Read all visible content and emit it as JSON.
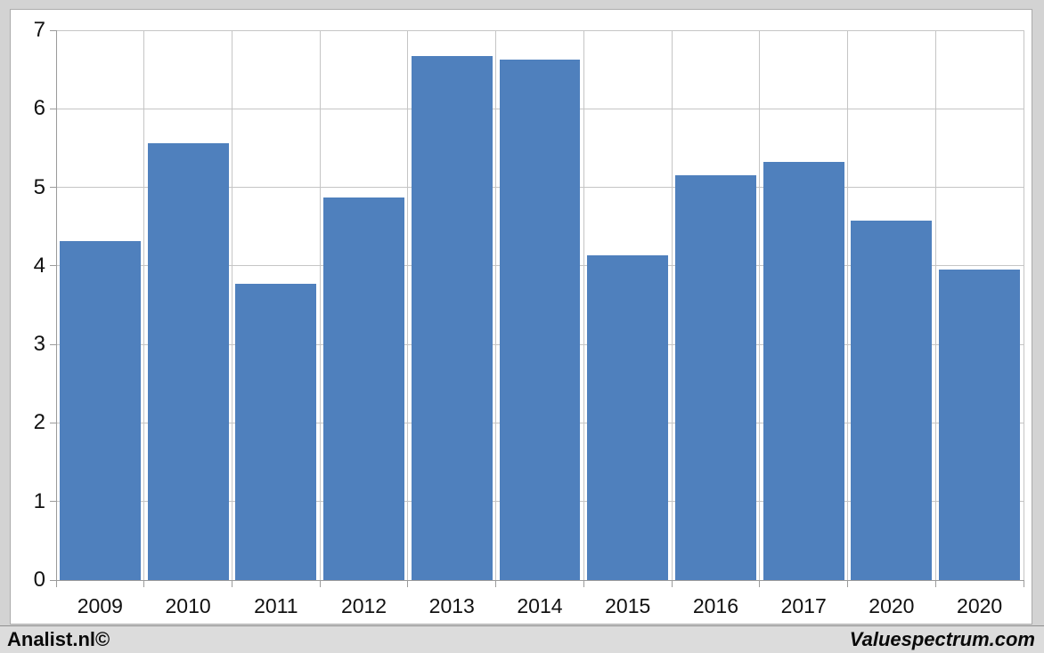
{
  "chart_data": {
    "type": "bar",
    "categories": [
      "2009",
      "2010",
      "2011",
      "2012",
      "2013",
      "2014",
      "2015",
      "2016",
      "2017",
      "2020",
      "2020"
    ],
    "values": [
      4.32,
      5.56,
      3.77,
      4.87,
      6.67,
      6.63,
      4.13,
      5.15,
      5.32,
      4.58,
      3.95
    ],
    "title": "",
    "xlabel": "",
    "ylabel": "",
    "ylim": [
      0,
      7
    ],
    "yticks": [
      0,
      1,
      2,
      3,
      4,
      5,
      6,
      7
    ],
    "grid": true,
    "legend": "none",
    "bar_color": "#4f80bd"
  },
  "footer": {
    "left_text": "Analist.nl©",
    "right_text": "Valuespectrum.com"
  },
  "colors": {
    "bar": "#4f80bd",
    "gridline": "#c5c5c5",
    "axis": "#9b9b9b",
    "frame_bg": "#d3d3d3",
    "panel_bg": "#ffffff",
    "footer_bg": "#dcdcdc",
    "text": "#111111"
  }
}
